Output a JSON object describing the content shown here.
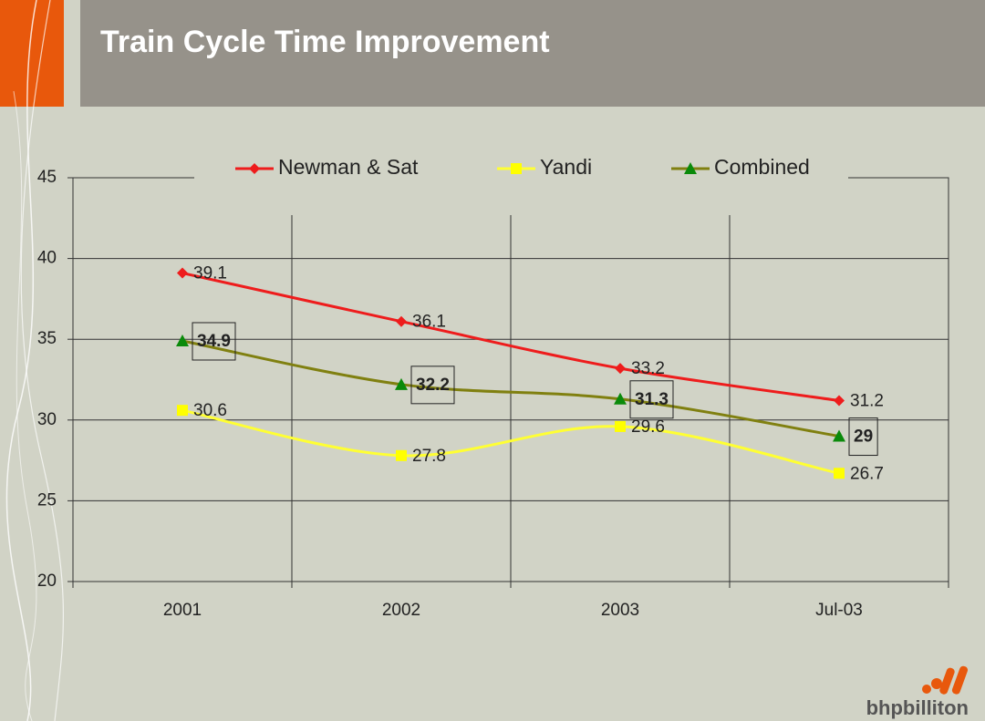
{
  "chart_data": {
    "type": "line",
    "title": "Train Cycle Time Improvement",
    "categories": [
      "2001",
      "2002",
      "2003",
      "Jul-03"
    ],
    "series": [
      {
        "name": "Newman & Sat",
        "color": "#ee1c1c",
        "marker": "diamond",
        "marker_color": "#ee1c1c",
        "values": [
          39.1,
          36.1,
          33.2,
          31.2
        ]
      },
      {
        "name": "Yandi",
        "color": "#ffff33",
        "marker": "square",
        "marker_color": "#ffff00",
        "values": [
          30.6,
          27.8,
          29.6,
          26.7
        ]
      },
      {
        "name": "Combined",
        "color": "#808010",
        "marker": "triangle",
        "marker_color": "#0a8a0a",
        "values": [
          34.9,
          32.2,
          31.3,
          29
        ],
        "boxed_labels": true
      }
    ],
    "ylim": [
      20,
      45
    ],
    "yticks": [
      20,
      25,
      30,
      35,
      40,
      45
    ],
    "grid": true,
    "smooth": true,
    "logo": "bhpbilliton"
  }
}
